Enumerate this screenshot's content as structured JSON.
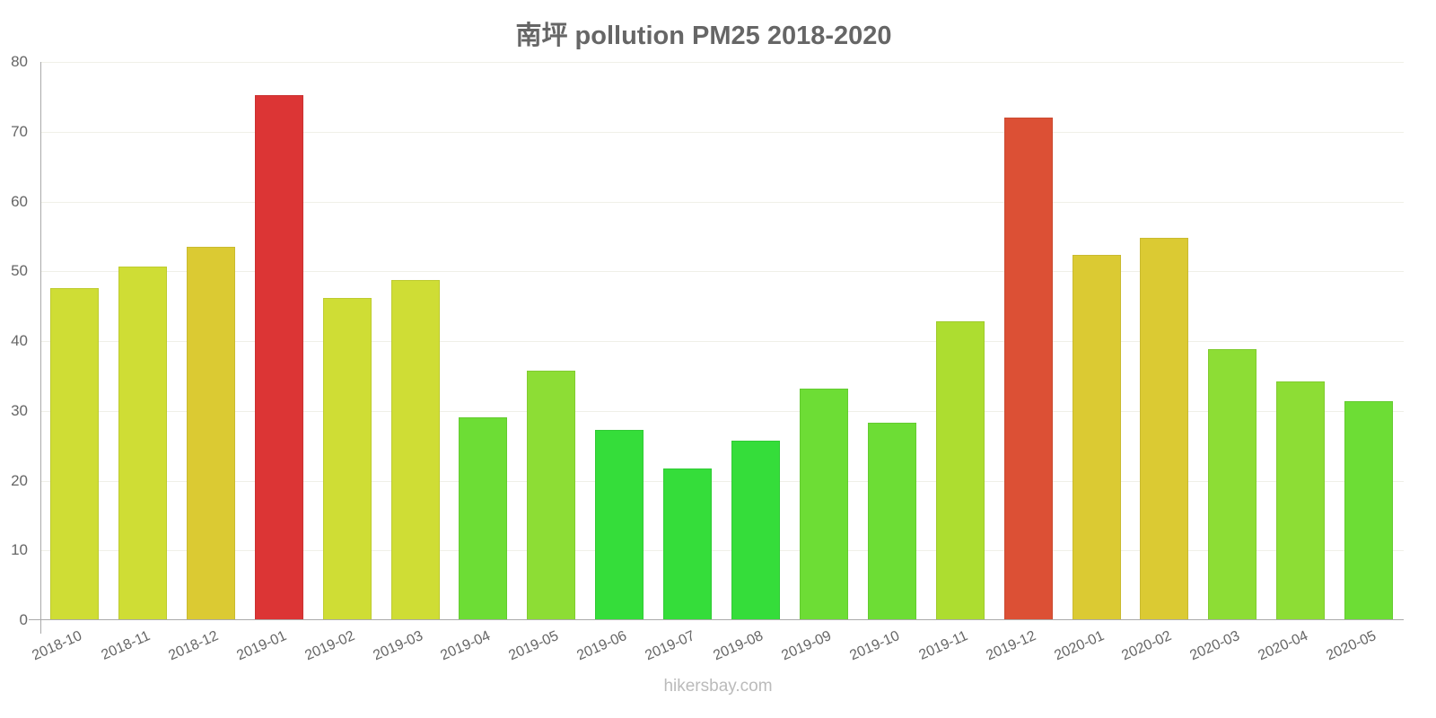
{
  "chart_data": {
    "type": "bar",
    "title": "南坪 pollution PM25 2018-2020",
    "xlabel": "",
    "ylabel": "",
    "ylim": [
      0,
      80
    ],
    "yticks": [
      0,
      10,
      20,
      30,
      40,
      50,
      60,
      70,
      80
    ],
    "grid": true,
    "legend": null,
    "categories": [
      "2018-10",
      "2018-11",
      "2018-12",
      "2019-01",
      "2019-02",
      "2019-03",
      "2019-04",
      "2019-05",
      "2019-06",
      "2019-07",
      "2019-08",
      "2019-09",
      "2019-10",
      "2019-11",
      "2019-12",
      "2020-01",
      "2020-02",
      "2020-03",
      "2020-04",
      "2020-05"
    ],
    "values": [
      47.6,
      50.7,
      53.5,
      75.2,
      46.2,
      48.7,
      29.1,
      35.8,
      27.3,
      21.7,
      25.7,
      33.2,
      28.3,
      42.8,
      72.0,
      52.3,
      54.8,
      38.8,
      34.2,
      31.4
    ],
    "colors": [
      "#cfdd35",
      "#cfdd35",
      "#dbca33",
      "#dc3535",
      "#cfdd35",
      "#cfdd35",
      "#6ddd35",
      "#8ddd35",
      "#35dd3a",
      "#35dd3a",
      "#35dd3a",
      "#6ddd35",
      "#6ddd35",
      "#addd30",
      "#dc5035",
      "#dbca33",
      "#dbca33",
      "#8ddd35",
      "#8ddd35",
      "#6ddd35"
    ]
  },
  "watermark": "hikersbay.com"
}
